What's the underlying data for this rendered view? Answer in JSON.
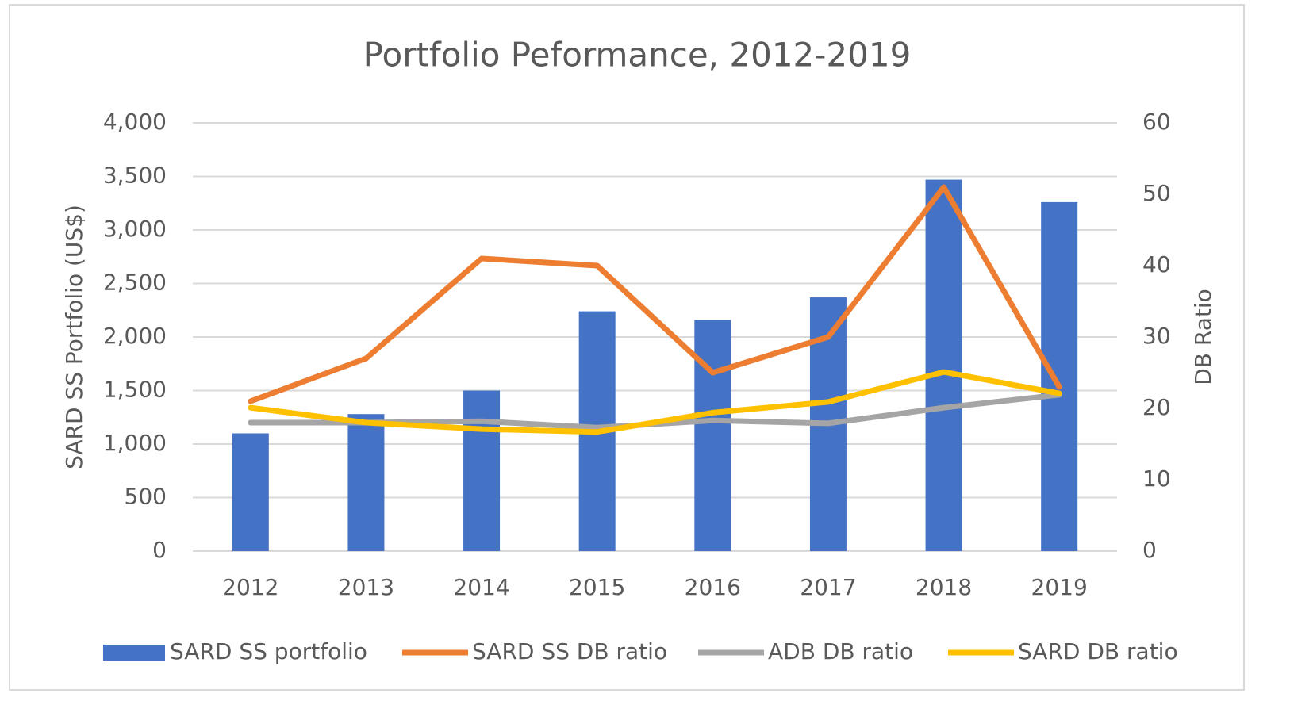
{
  "chart_data": {
    "type": "combo",
    "title": "Portfolio Peformance, 2012-2019",
    "ylabel": "SARD SS Portfolio (US$)",
    "y2label": "DB Ratio",
    "categories": [
      "2012",
      "2013",
      "2014",
      "2015",
      "2016",
      "2017",
      "2018",
      "2019"
    ],
    "series": [
      {
        "name": "SARD SS portfolio",
        "type": "bar",
        "color": "#4472c4",
        "values": [
          1100,
          1280,
          1500,
          2240,
          2160,
          2370,
          3470,
          3260
        ]
      },
      {
        "name": "SARD SS DB ratio",
        "type": "line",
        "axis": "y2",
        "color": "#ed7d31",
        "values": [
          21,
          27,
          41,
          40,
          25,
          30,
          51,
          23
        ]
      },
      {
        "name": "ADB DB ratio",
        "type": "line",
        "axis": "y2",
        "color": "#a5a5a5",
        "values": [
          18,
          18,
          18.2,
          17.3,
          18.3,
          17.9,
          20.1,
          21.9
        ]
      },
      {
        "name": "SARD DB ratio",
        "type": "line",
        "axis": "y2",
        "color": "#ffc000",
        "values": [
          20.1,
          18,
          17.1,
          16.7,
          19.4,
          20.9,
          25.1,
          22.1
        ]
      }
    ],
    "ylim": [
      0,
      4000
    ],
    "yticks": [
      0,
      500,
      {
        "value": 1000,
        "label": "1,000"
      },
      {
        "value": 1500,
        "label": "1,500"
      },
      {
        "value": 2000,
        "label": "2,000"
      },
      {
        "value": 2500,
        "label": "2,500"
      },
      {
        "value": 3000,
        "label": "3,000"
      },
      {
        "value": 3500,
        "label": "3,500"
      },
      {
        "value": 4000,
        "label": "4,000"
      }
    ],
    "y2lim": [
      0,
      60
    ],
    "y2ticks": [
      0,
      10,
      20,
      30,
      40,
      50,
      60
    ],
    "grid": true,
    "legend": "bottom"
  }
}
